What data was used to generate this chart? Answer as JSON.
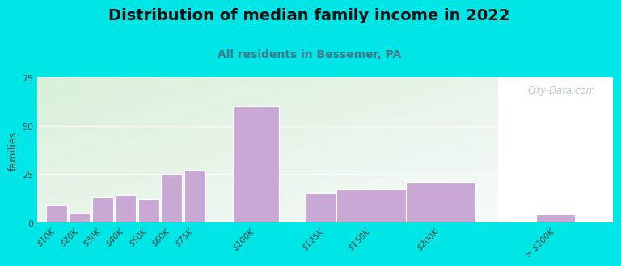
{
  "title": "Distribution of median family income in 2022",
  "subtitle": "All residents in Bessemer, PA",
  "ylabel": "families",
  "categories": [
    "$10K",
    "$20K",
    "$30K",
    "$40K",
    "$50K",
    "$60K",
    "$75K",
    "$100K",
    "$125K",
    "$150K",
    "$200K",
    "> $200K"
  ],
  "values": [
    9,
    5,
    13,
    14,
    12,
    25,
    27,
    60,
    15,
    17,
    21,
    4
  ],
  "bar_color": "#c9a8d4",
  "bar_edge_color": "#ffffff",
  "ylim": [
    0,
    75
  ],
  "yticks": [
    0,
    25,
    50,
    75
  ],
  "background_outer": "#00e5e5",
  "title_fontsize": 14,
  "subtitle_fontsize": 10,
  "subtitle_color": "#447788",
  "watermark_text": "City-Data.com",
  "watermark_color": "#aabbcc"
}
